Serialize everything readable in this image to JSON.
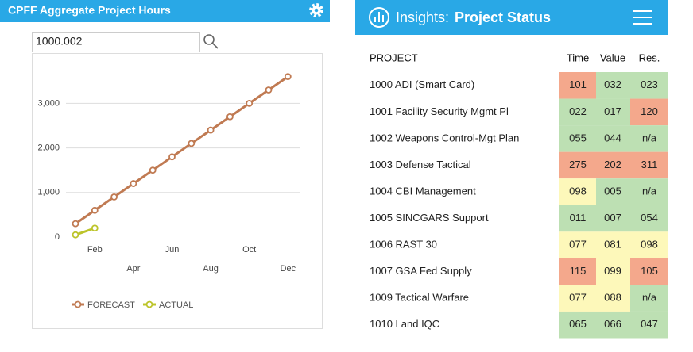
{
  "left_panel": {
    "title": "CPFF Aggregate Project Hours",
    "search_value": "1000.002"
  },
  "chart_data": {
    "type": "line",
    "categories": [
      null,
      "Feb",
      null,
      "Apr",
      null,
      "Jun",
      null,
      "Aug",
      null,
      "Oct",
      null,
      "Dec"
    ],
    "series": [
      {
        "name": "FORECAST",
        "color": "#c07a52",
        "values": [
          300,
          600,
          900,
          1200,
          1500,
          1800,
          2100,
          2400,
          2700,
          3000,
          3300,
          3600
        ]
      },
      {
        "name": "ACTUAL",
        "color": "#bcc42a",
        "values": [
          50,
          200,
          null,
          null,
          null,
          null,
          null,
          null,
          null,
          null,
          null,
          null
        ]
      }
    ],
    "ylim": [
      0,
      3700
    ],
    "yticks": [
      0,
      {
        "value": 1000,
        "label": "1,000"
      },
      {
        "value": 2000,
        "label": "2,000"
      },
      {
        "value": 3000,
        "label": "3,000"
      }
    ],
    "grid": true,
    "legend": "bottom"
  },
  "right_panel": {
    "brand": "Insights:",
    "title": "Project Status",
    "table": {
      "columns": [
        "PROJECT",
        "Time",
        "Value",
        "Res."
      ],
      "rows": [
        [
          {
            "text": "1000 ADI (Smart Card)"
          },
          {
            "text": "101",
            "color": "#f4a88c"
          },
          {
            "text": "032",
            "color": "#bde0b3"
          },
          {
            "text": "023",
            "color": "#bde0b3"
          }
        ],
        [
          {
            "text": "1001 Facility Security Mgmt Pl"
          },
          {
            "text": "022",
            "color": "#bde0b3"
          },
          {
            "text": "017",
            "color": "#bde0b3"
          },
          {
            "text": "120",
            "color": "#f4a88c"
          }
        ],
        [
          {
            "text": "1002 Weapons Control-Mgt Plan"
          },
          {
            "text": "055",
            "color": "#bde0b3"
          },
          {
            "text": "044",
            "color": "#bde0b3"
          },
          {
            "text": "n/a",
            "color": "#bde0b3"
          }
        ],
        [
          {
            "text": "1003 Defense Tactical"
          },
          {
            "text": "275",
            "color": "#f4a88c"
          },
          {
            "text": "202",
            "color": "#f4a88c"
          },
          {
            "text": "311",
            "color": "#f4a88c"
          }
        ],
        [
          {
            "text": "1004 CBI Management"
          },
          {
            "text": "098",
            "color": "#fdf8ba"
          },
          {
            "text": "005",
            "color": "#bde0b3"
          },
          {
            "text": "n/a",
            "color": "#bde0b3"
          }
        ],
        [
          {
            "text": "1005 SINCGARS Support"
          },
          {
            "text": "011",
            "color": "#bde0b3"
          },
          {
            "text": "007",
            "color": "#bde0b3"
          },
          {
            "text": "054",
            "color": "#bde0b3"
          }
        ],
        [
          {
            "text": "1006 RAST 30"
          },
          {
            "text": "077",
            "color": "#fdf8ba"
          },
          {
            "text": "081",
            "color": "#fdf8ba"
          },
          {
            "text": "098",
            "color": "#fdf8ba"
          }
        ],
        [
          {
            "text": "1007 GSA Fed Supply"
          },
          {
            "text": "115",
            "color": "#f4a88c"
          },
          {
            "text": "099",
            "color": "#fdf8ba"
          },
          {
            "text": "105",
            "color": "#f4a88c"
          }
        ],
        [
          {
            "text": "1009 Tactical Warfare"
          },
          {
            "text": "077",
            "color": "#fdf8ba"
          },
          {
            "text": "088",
            "color": "#fdf8ba"
          },
          {
            "text": "n/a",
            "color": "#bde0b3"
          }
        ],
        [
          {
            "text": "1010 Land IQC"
          },
          {
            "text": "065",
            "color": "#bde0b3"
          },
          {
            "text": "066",
            "color": "#bde0b3"
          },
          {
            "text": "047",
            "color": "#bde0b3"
          }
        ]
      ]
    }
  }
}
